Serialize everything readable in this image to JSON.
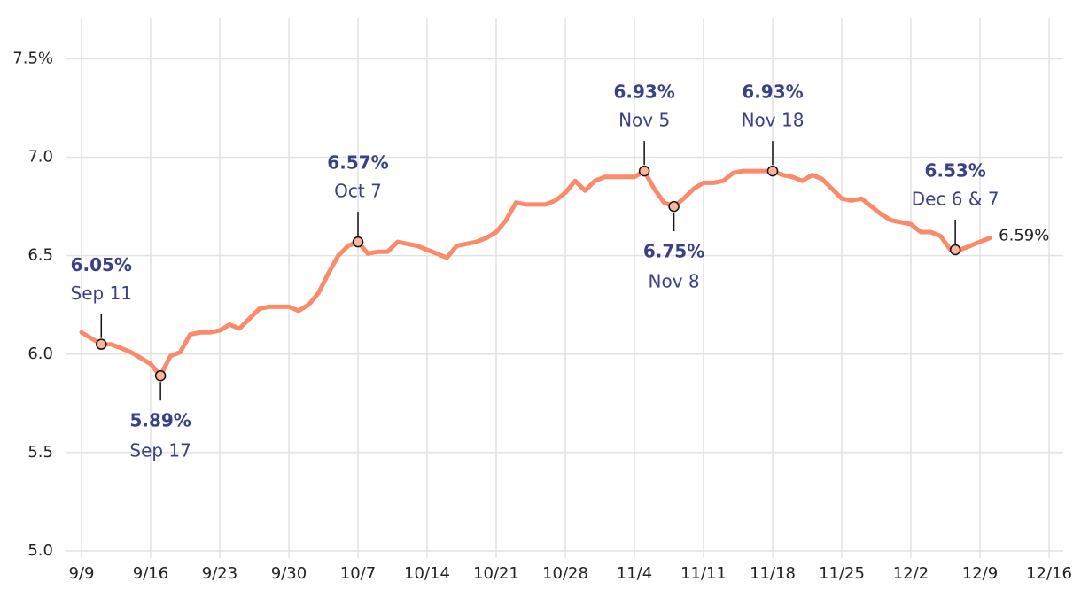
{
  "chart_data": {
    "type": "line",
    "x": [
      "9/9",
      "9/10",
      "9/11",
      "9/12",
      "9/13",
      "9/14",
      "9/15",
      "9/16",
      "9/17",
      "9/18",
      "9/19",
      "9/20",
      "9/21",
      "9/22",
      "9/23",
      "9/24",
      "9/25",
      "9/26",
      "9/27",
      "9/28",
      "9/29",
      "9/30",
      "10/1",
      "10/2",
      "10/3",
      "10/4",
      "10/5",
      "10/6",
      "10/7",
      "10/8",
      "10/9",
      "10/10",
      "10/11",
      "10/12",
      "10/13",
      "10/14",
      "10/15",
      "10/16",
      "10/17",
      "10/18",
      "10/19",
      "10/20",
      "10/21",
      "10/22",
      "10/23",
      "10/24",
      "10/25",
      "10/26",
      "10/27",
      "10/28",
      "10/29",
      "10/30",
      "10/31",
      "11/1",
      "11/2",
      "11/3",
      "11/4",
      "11/5",
      "11/6",
      "11/7",
      "11/8",
      "11/9",
      "11/10",
      "11/11",
      "11/12",
      "11/13",
      "11/14",
      "11/15",
      "11/16",
      "11/17",
      "11/18",
      "11/19",
      "11/20",
      "11/21",
      "11/22",
      "11/23",
      "11/24",
      "11/25",
      "11/26",
      "11/27",
      "11/28",
      "11/29",
      "11/30",
      "12/1",
      "12/2",
      "12/3",
      "12/4",
      "12/5",
      "12/6",
      "12/7",
      "12/8",
      "12/9",
      "12/10"
    ],
    "series": [
      {
        "color": "#f98b6b",
        "values": [
          6.11,
          6.08,
          6.05,
          6.05,
          6.03,
          6.01,
          5.98,
          5.95,
          5.89,
          5.99,
          6.01,
          6.1,
          6.11,
          6.11,
          6.12,
          6.15,
          6.13,
          6.18,
          6.23,
          6.24,
          6.24,
          6.24,
          6.22,
          6.25,
          6.31,
          6.41,
          6.5,
          6.55,
          6.57,
          6.51,
          6.52,
          6.52,
          6.57,
          6.56,
          6.55,
          6.53,
          6.51,
          6.49,
          6.55,
          6.56,
          6.57,
          6.59,
          6.62,
          6.68,
          6.77,
          6.76,
          6.76,
          6.76,
          6.78,
          6.82,
          6.88,
          6.83,
          6.88,
          6.9,
          6.9,
          6.9,
          6.9,
          6.93,
          6.84,
          6.77,
          6.75,
          6.79,
          6.84,
          6.87,
          6.87,
          6.88,
          6.92,
          6.93,
          6.93,
          6.93,
          6.93,
          6.91,
          6.9,
          6.88,
          6.91,
          6.89,
          6.84,
          6.79,
          6.78,
          6.79,
          6.75,
          6.71,
          6.68,
          6.67,
          6.66,
          6.62,
          6.62,
          6.6,
          6.53,
          6.53,
          6.55,
          6.57,
          6.59
        ],
        "last_value_label": "6.59%"
      }
    ],
    "annotations": [
      {
        "at": [
          "9/11"
        ],
        "value": 6.05,
        "value_label": "6.05%",
        "label": "Sep 11",
        "position": "above"
      },
      {
        "at": [
          "9/17"
        ],
        "value": 5.89,
        "value_label": "5.89%",
        "label": "Sep 17",
        "position": "below"
      },
      {
        "at": [
          "10/7"
        ],
        "value": 6.57,
        "value_label": "6.57%",
        "label": "Oct 7",
        "position": "above"
      },
      {
        "at": [
          "11/5"
        ],
        "value": 6.93,
        "value_label": "6.93%",
        "label": "Nov 5",
        "position": "above"
      },
      {
        "at": [
          "11/8"
        ],
        "value": 6.75,
        "value_label": "6.75%",
        "label": "Nov 8",
        "position": "below"
      },
      {
        "at": [
          "11/18"
        ],
        "value": 6.93,
        "value_label": "6.93%",
        "label": "Nov 18",
        "position": "above"
      },
      {
        "at": [
          "12/6",
          "12/7"
        ],
        "value": 6.53,
        "value_label": "6.53%",
        "label": "Dec 6 & 7",
        "position": "above"
      }
    ],
    "xlim": [
      "9/9",
      "12/16"
    ],
    "xticks": [
      "9/9",
      "9/16",
      "9/23",
      "9/30",
      "10/7",
      "10/14",
      "10/21",
      "10/28",
      "11/4",
      "11/11",
      "11/18",
      "11/25",
      "12/2",
      "12/9",
      "12/16"
    ],
    "ylim": [
      5,
      7.7
    ],
    "yticks": [
      {
        "value": 5,
        "label": "5.0"
      },
      5.5,
      {
        "value": 6,
        "label": "6.0"
      },
      6.5,
      {
        "value": 7,
        "label": "7.0"
      },
      {
        "value": 7.5,
        "label": "7.5%"
      }
    ],
    "grid": true
  }
}
